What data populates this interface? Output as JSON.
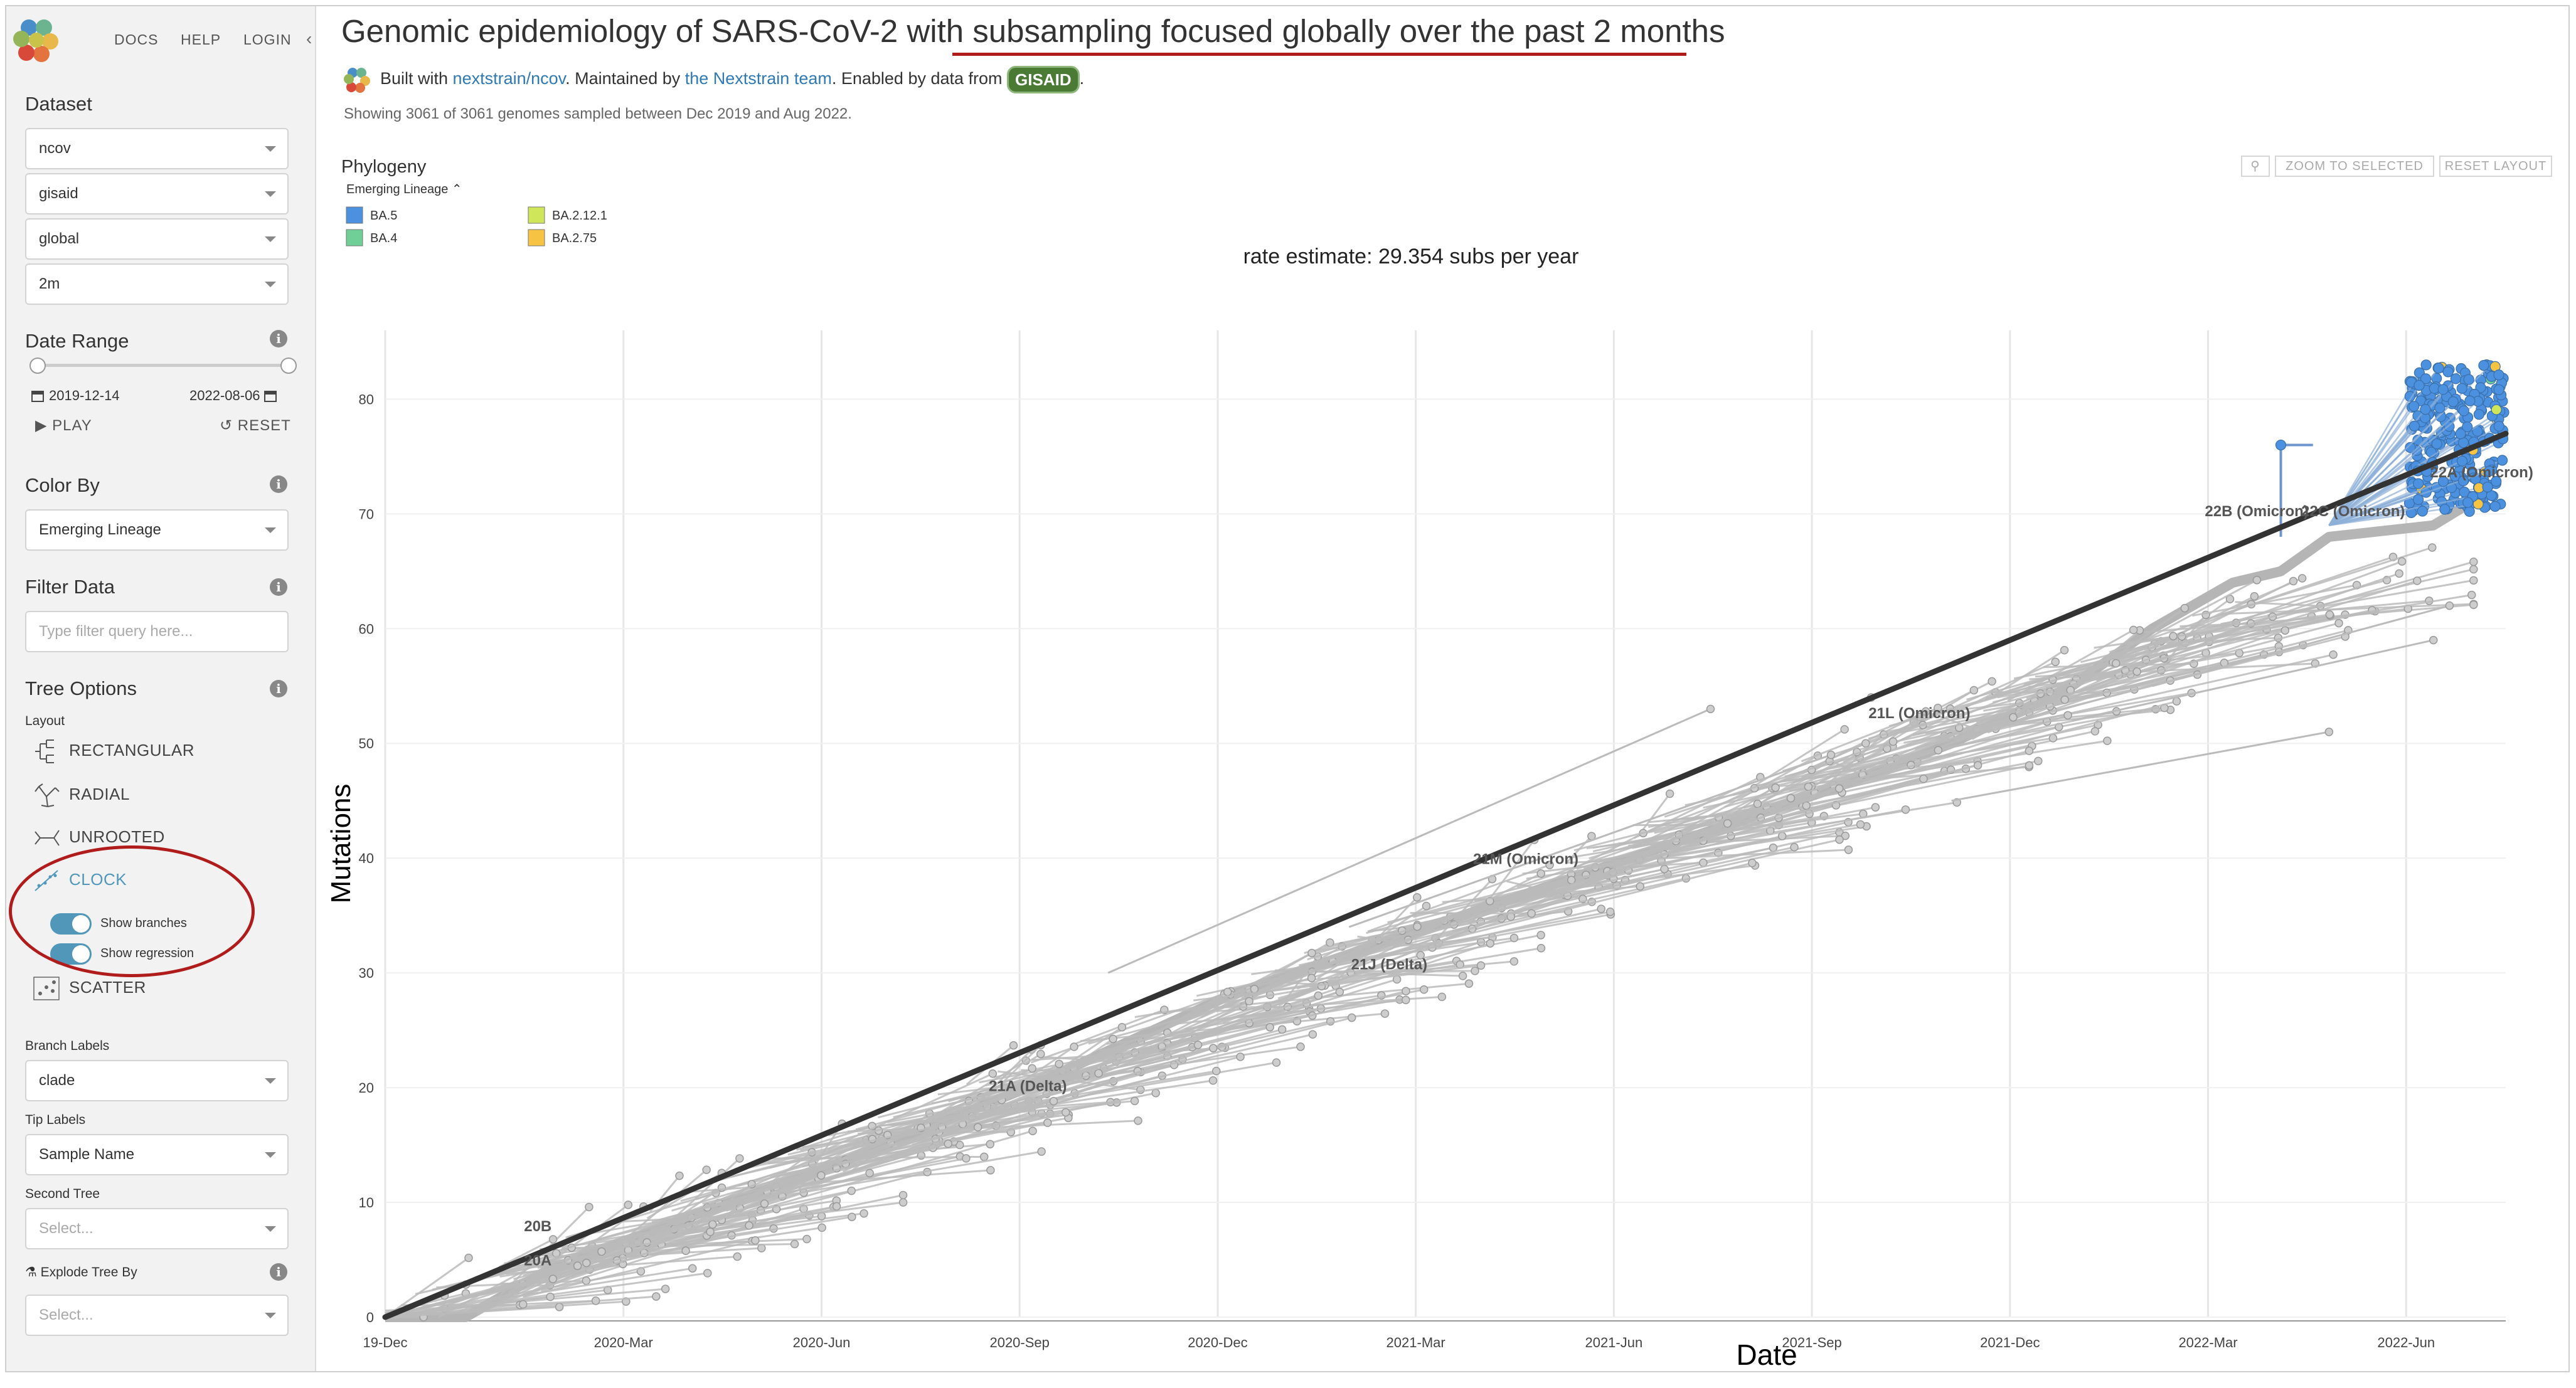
{
  "nav": {
    "docs": "DOCS",
    "help": "HELP",
    "login": "LOGIN",
    "collapse": "‹"
  },
  "sidebar": {
    "dataset": {
      "title": "Dataset",
      "selects": [
        "ncov",
        "gisaid",
        "global",
        "2m"
      ]
    },
    "date_range": {
      "title": "Date Range",
      "start": "2019-12-14",
      "end": "2022-08-06",
      "start_fraction": 0.0,
      "end_fraction": 1.0,
      "play": "PLAY",
      "reset": "RESET"
    },
    "color_by": {
      "title": "Color By",
      "value": "Emerging Lineage"
    },
    "filter": {
      "title": "Filter Data",
      "placeholder": "Type filter query here..."
    },
    "tree_options": {
      "title": "Tree Options",
      "layout_label": "Layout",
      "layouts": [
        "RECTANGULAR",
        "RADIAL",
        "UNROOTED",
        "CLOCK",
        "SCATTER"
      ],
      "selected_layout": "CLOCK",
      "show_branches": "Show branches",
      "show_regression": "Show regression",
      "branch_labels_label": "Branch Labels",
      "branch_labels_value": "clade",
      "tip_labels_label": "Tip Labels",
      "tip_labels_value": "Sample Name",
      "second_tree_label": "Second Tree",
      "second_tree_placeholder": "Select...",
      "explode_label": "Explode Tree By",
      "explode_placeholder": "Select..."
    },
    "info_icon": "i"
  },
  "header": {
    "title_prefix": "Genomic epidemiology of SARS-CoV-2 with ",
    "title_emph": "subsampling focused globally over the past 2 months",
    "byline": {
      "built": "Built with ",
      "built_link": "nextstrain/ncov",
      "maint": ". Maintained by ",
      "team": "the Nextstrain team",
      "enabled": ". Enabled by data from ",
      "gisaid": "GISAID",
      "end": "."
    },
    "subline": "Showing 3061 of 3061 genomes sampled between Dec 2019 and Aug 2022."
  },
  "panel": {
    "title": "Phylogeny",
    "zoom_to_selected": "ZOOM TO SELECTED",
    "reset_layout": "RESET LAYOUT",
    "legend_title": "Emerging Lineage"
  },
  "colors": {
    "accent": "#5097ba",
    "annotation": "#b01c1c",
    "branch": "#bbbbbb",
    "regression": "#333333",
    "ba5": "#4c90e0",
    "ba4": "#6fcf97",
    "ba2121": "#cfe55a",
    "ba275": "#f6c342"
  },
  "chart_data": {
    "type": "scatter",
    "xlabel": "Date",
    "ylabel": "Mutations",
    "x_ticks": [
      "19-Dec",
      "2020-Mar",
      "2020-Jun",
      "2020-Sep",
      "2020-Dec",
      "2021-Mar",
      "2021-Jun",
      "2021-Sep",
      "2021-Dec",
      "2022-Mar",
      "2022-Jun"
    ],
    "y_ticks": [
      0,
      10,
      20,
      30,
      40,
      50,
      60,
      70,
      80
    ],
    "ylim": [
      0,
      88
    ],
    "xlim": [
      "2019-12-14",
      "2022-08-06"
    ],
    "rate_text": "rate estimate: 29.354 subs per year",
    "rate_subs_per_year": 29.354,
    "regression": {
      "start": [
        0,
        0
      ],
      "end": [
        2.64,
        77
      ]
    },
    "legend": [
      {
        "name": "BA.5",
        "color": "#4c90e0"
      },
      {
        "name": "BA.4",
        "color": "#6fcf97"
      },
      {
        "name": "BA.2.12.1",
        "color": "#cfe55a"
      },
      {
        "name": "BA.2.75",
        "color": "#f6c342"
      }
    ],
    "clade_labels": [
      {
        "label": "20B",
        "x": 0.19,
        "y": 7.5
      },
      {
        "label": "20A",
        "x": 0.19,
        "y": 4.5
      },
      {
        "label": "21A (Delta)",
        "x": 0.8,
        "y": 19.7
      },
      {
        "label": "21J (Delta)",
        "x": 1.25,
        "y": 30.3
      },
      {
        "label": "21M (Omicron)",
        "x": 1.42,
        "y": 39.5
      },
      {
        "label": "21L (Omicron)",
        "x": 1.91,
        "y": 52.2
      },
      {
        "label": "22B (Omicron)",
        "x": 2.33,
        "y": 69.8
      },
      {
        "label": "22C (Omicron)",
        "x": 2.45,
        "y": 69.8
      },
      {
        "label": "22A (Omicron)",
        "x": 2.61,
        "y": 73.2
      }
    ]
  }
}
